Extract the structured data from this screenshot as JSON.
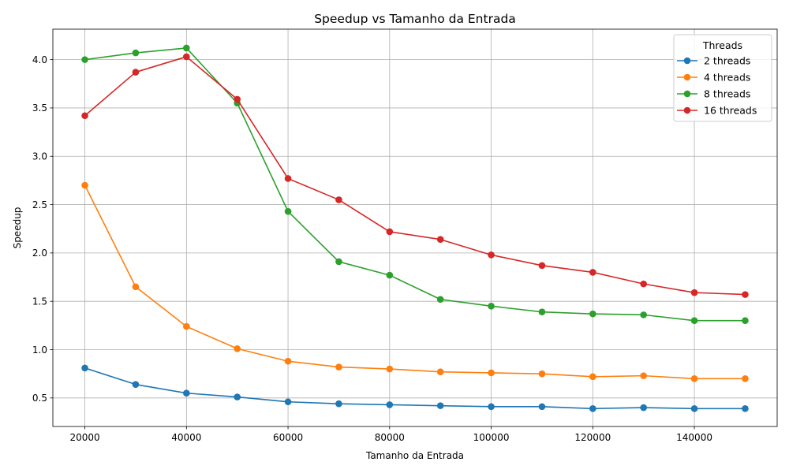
{
  "chart_data": {
    "type": "line",
    "title": "Speedup vs Tamanho da Entrada",
    "xlabel": "Tamanho da Entrada",
    "ylabel": "Speedup",
    "x": [
      20000,
      30000,
      40000,
      50000,
      60000,
      70000,
      80000,
      90000,
      100000,
      110000,
      120000,
      130000,
      140000,
      150000
    ],
    "xlim": [
      13700,
      156300
    ],
    "ylim": [
      0.205,
      4.315
    ],
    "xticks": [
      20000,
      40000,
      60000,
      80000,
      100000,
      120000,
      140000
    ],
    "yticks": [
      0.5,
      1.0,
      1.5,
      2.0,
      2.5,
      3.0,
      3.5,
      4.0
    ],
    "ytick_labels": [
      "0.5",
      "1.0",
      "1.5",
      "2.0",
      "2.5",
      "3.0",
      "3.5",
      "4.0"
    ],
    "grid": true,
    "legend": {
      "title": "Threads",
      "position": "top-right"
    },
    "series": [
      {
        "name": "2 threads",
        "color": "#1f77b4",
        "values": [
          0.81,
          0.64,
          0.55,
          0.51,
          0.46,
          0.44,
          0.43,
          0.42,
          0.41,
          0.41,
          0.39,
          0.4,
          0.39,
          0.39
        ]
      },
      {
        "name": "4 threads",
        "color": "#ff7f0e",
        "values": [
          2.7,
          1.65,
          1.24,
          1.01,
          0.88,
          0.82,
          0.8,
          0.77,
          0.76,
          0.75,
          0.72,
          0.73,
          0.7,
          0.7
        ]
      },
      {
        "name": "8 threads",
        "color": "#2ca02c",
        "values": [
          4.0,
          4.07,
          4.12,
          3.55,
          2.43,
          1.91,
          1.77,
          1.52,
          1.45,
          1.39,
          1.37,
          1.36,
          1.3,
          1.3
        ]
      },
      {
        "name": "16 threads",
        "color": "#d62728",
        "values": [
          3.42,
          3.87,
          4.03,
          3.59,
          2.77,
          2.55,
          2.22,
          2.14,
          1.98,
          1.87,
          1.8,
          1.68,
          1.59,
          1.57
        ]
      }
    ]
  }
}
